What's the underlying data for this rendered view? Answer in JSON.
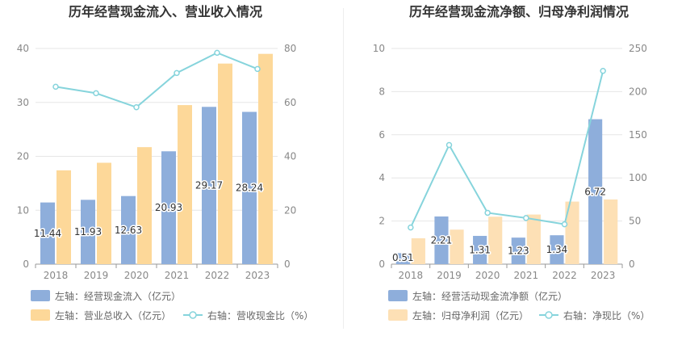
{
  "chart_data": [
    {
      "type": "bar",
      "title": "历年经营现金流入、营业收入情况",
      "categories": [
        "2018",
        "2019",
        "2020",
        "2021",
        "2022",
        "2023"
      ],
      "left_axis": {
        "ylim": [
          0,
          40
        ],
        "ticks": [
          "0",
          "10",
          "20",
          "30",
          "40"
        ]
      },
      "right_axis": {
        "ylim": [
          0,
          80
        ],
        "ticks": [
          "0",
          "20",
          "40",
          "60",
          "80"
        ]
      },
      "series": [
        {
          "name": "左轴：经营现金流入（亿元）",
          "type": "bar",
          "axis": "left",
          "color": "#8eaedb",
          "values": [
            11.44,
            11.93,
            12.63,
            20.93,
            29.17,
            28.24
          ],
          "labels": [
            "11.44",
            "11.93",
            "12.63",
            "20.93",
            "29.17",
            "28.24"
          ]
        },
        {
          "name": "左轴：营业总收入（亿元）",
          "type": "bar",
          "axis": "left",
          "color": "#fdd899",
          "values": [
            17.4,
            18.8,
            21.7,
            29.5,
            37.2,
            39.0
          ]
        },
        {
          "name": "右轴：营收现金比（%）",
          "type": "line",
          "axis": "right",
          "color": "#86d4dc",
          "values": [
            65.8,
            63.4,
            58.2,
            70.9,
            78.4,
            72.4
          ]
        }
      ],
      "legend": "bottom"
    },
    {
      "type": "bar",
      "title": "历年经营现金流净额、归母净利润情况",
      "categories": [
        "2018",
        "2019",
        "2020",
        "2021",
        "2022",
        "2023"
      ],
      "left_axis": {
        "ylim": [
          0,
          10
        ],
        "ticks": [
          "0",
          "2",
          "4",
          "6",
          "8",
          "10"
        ]
      },
      "right_axis": {
        "ylim": [
          0,
          250
        ],
        "ticks": [
          "0",
          "50",
          "100",
          "150",
          "200",
          "250"
        ]
      },
      "series": [
        {
          "name": "左轴：经营活动现金流净额（亿元）",
          "type": "bar",
          "axis": "left",
          "color": "#8eaedb",
          "values": [
            0.51,
            2.21,
            1.31,
            1.23,
            1.34,
            6.72
          ],
          "labels": [
            "0.51",
            "2.21",
            "1.31",
            "1.23",
            "1.34",
            "6.72"
          ]
        },
        {
          "name": "左轴：归母净利润（亿元）",
          "type": "bar",
          "axis": "left",
          "color": "#fde0b5",
          "values": [
            1.2,
            1.6,
            2.2,
            2.3,
            2.9,
            3.0
          ]
        },
        {
          "name": "右轴：净现比（%）",
          "type": "line",
          "axis": "right",
          "color": "#86d4dc",
          "values": [
            42.5,
            138.1,
            59.5,
            53.5,
            46.2,
            224.0
          ]
        }
      ],
      "legend": "bottom"
    }
  ]
}
